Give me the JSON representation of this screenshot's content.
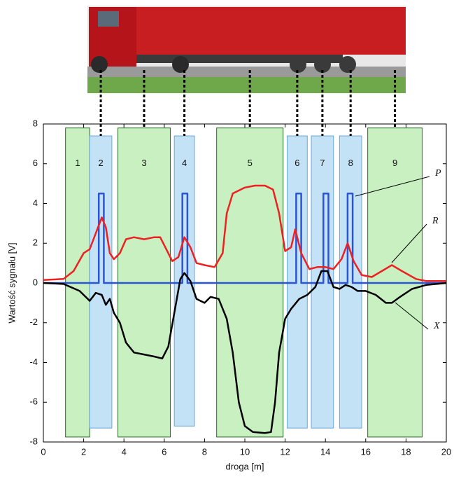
{
  "chart_data": {
    "type": "line",
    "xlabel": "droga [m]",
    "ylabel": "Wartość sygnału  [V]",
    "xlim": [
      0,
      20
    ],
    "ylim": [
      -8,
      8
    ],
    "xticks": [
      0,
      2,
      4,
      6,
      8,
      10,
      12,
      14,
      16,
      18,
      20
    ],
    "yticks": [
      -8,
      -6,
      -4,
      -2,
      0,
      2,
      4,
      6,
      8
    ],
    "grid": false,
    "regions": [
      {
        "label": "1",
        "x": [
          1.1,
          2.3
        ],
        "y": [
          -7.75,
          7.8
        ],
        "color": "#c8f0c0"
      },
      {
        "label": "2",
        "x": [
          2.3,
          3.4
        ],
        "y": [
          -7.3,
          7.4
        ],
        "color": "#c4e2f6"
      },
      {
        "label": "3",
        "x": [
          3.7,
          6.3
        ],
        "y": [
          -7.75,
          7.8
        ],
        "color": "#c8f0c0"
      },
      {
        "label": "4",
        "x": [
          6.5,
          7.5
        ],
        "y": [
          -7.2,
          7.4
        ],
        "color": "#c4e2f6"
      },
      {
        "label": "5",
        "x": [
          8.6,
          11.9
        ],
        "y": [
          -7.75,
          7.8
        ],
        "color": "#c8f0c0"
      },
      {
        "label": "6",
        "x": [
          12.1,
          13.1
        ],
        "y": [
          -7.3,
          7.4
        ],
        "color": "#c4e2f6"
      },
      {
        "label": "7",
        "x": [
          13.3,
          14.4
        ],
        "y": [
          -7.3,
          7.4
        ],
        "color": "#c4e2f6"
      },
      {
        "label": "8",
        "x": [
          14.7,
          15.8
        ],
        "y": [
          -7.3,
          7.4
        ],
        "color": "#c4e2f6"
      },
      {
        "label": "9",
        "x": [
          16.1,
          18.8
        ],
        "y": [
          -7.75,
          7.8
        ],
        "color": "#c8f0c0"
      }
    ],
    "series": [
      {
        "name": "P",
        "color": "#2a55d8",
        "x": [
          0,
          2.75,
          2.75,
          3.0,
          3.0,
          6.9,
          6.9,
          7.15,
          7.15,
          12.55,
          12.55,
          12.8,
          12.8,
          13.9,
          13.9,
          14.15,
          14.15,
          15.1,
          15.1,
          15.35,
          15.35,
          20
        ],
        "values": [
          0,
          0,
          4.5,
          4.5,
          0,
          0,
          4.5,
          4.5,
          0,
          0,
          4.5,
          4.5,
          0,
          0,
          4.5,
          4.5,
          0,
          0,
          4.5,
          4.5,
          0,
          0
        ]
      },
      {
        "name": "R",
        "color": "#ee2020",
        "x": [
          0,
          1,
          1.5,
          2.0,
          2.3,
          2.6,
          2.9,
          3.1,
          3.3,
          3.5,
          3.8,
          4.1,
          4.5,
          5.0,
          5.5,
          5.8,
          6.1,
          6.4,
          6.7,
          7.0,
          7.3,
          7.6,
          8.0,
          8.5,
          8.9,
          9.1,
          9.4,
          10.0,
          10.5,
          11.0,
          11.4,
          11.7,
          12.0,
          12.3,
          12.5,
          12.8,
          13.2,
          13.6,
          14.0,
          14.4,
          14.8,
          15.1,
          15.4,
          15.8,
          16.3,
          16.8,
          17.3,
          17.8,
          18.5,
          19,
          20
        ],
        "values": [
          0.15,
          0.2,
          0.6,
          1.5,
          1.7,
          2.5,
          3.3,
          2.8,
          1.5,
          1.2,
          1.5,
          2.2,
          2.3,
          2.2,
          2.3,
          2.3,
          1.7,
          1.1,
          1.3,
          2.3,
          1.8,
          1.0,
          0.9,
          0.8,
          1.5,
          3.5,
          4.5,
          4.8,
          4.9,
          4.9,
          4.7,
          3.5,
          1.6,
          1.8,
          2.7,
          1.5,
          0.7,
          0.8,
          0.8,
          0.7,
          1.2,
          2.0,
          1.1,
          0.4,
          0.3,
          0.6,
          0.9,
          0.6,
          0.2,
          0.1,
          0.1
        ]
      },
      {
        "name": "X",
        "color": "#000000",
        "x": [
          0,
          1,
          1.8,
          2.3,
          2.6,
          2.9,
          3.1,
          3.3,
          3.5,
          3.8,
          4.1,
          4.5,
          5.0,
          5.5,
          5.9,
          6.2,
          6.5,
          6.8,
          7.0,
          7.3,
          7.6,
          8.0,
          8.3,
          8.7,
          9.1,
          9.4,
          9.7,
          10.0,
          10.4,
          11.0,
          11.3,
          11.5,
          11.7,
          12.0,
          12.3,
          12.7,
          13.1,
          13.5,
          13.8,
          14.1,
          14.4,
          14.7,
          15.0,
          15.3,
          15.6,
          16.0,
          16.5,
          17.0,
          17.3,
          17.7,
          18.3,
          19,
          20
        ],
        "values": [
          0,
          -0.05,
          -0.4,
          -0.9,
          -0.5,
          -0.6,
          -1.1,
          -0.8,
          -1.5,
          -2.0,
          -3.0,
          -3.5,
          -3.6,
          -3.7,
          -3.8,
          -3.2,
          -1.5,
          0.2,
          0.5,
          0.1,
          -0.8,
          -1.0,
          -0.7,
          -0.8,
          -1.8,
          -3.5,
          -6.0,
          -7.2,
          -7.5,
          -7.55,
          -7.5,
          -6.0,
          -3.5,
          -1.8,
          -1.3,
          -0.8,
          -0.6,
          -0.2,
          0.6,
          0.6,
          -0.2,
          -0.3,
          -0.1,
          -0.2,
          -0.4,
          -0.4,
          -0.6,
          -1.0,
          -1.0,
          -0.7,
          -0.3,
          -0.1,
          0
        ]
      }
    ]
  }
}
